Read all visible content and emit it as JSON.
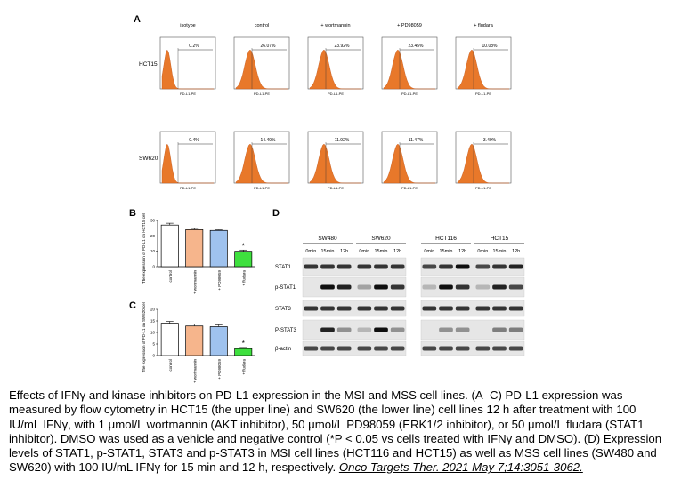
{
  "panels": {
    "a": "A",
    "b": "B",
    "c": "C",
    "d": "D"
  },
  "flow": {
    "columns": [
      "isotype",
      "control",
      "+ wortmannin",
      "+ PD98059",
      "+ fludara"
    ],
    "axis_label": "PD-L1-PE",
    "rows": [
      {
        "cell_line": "HCT15",
        "percents": [
          "0.2%",
          "26.07%",
          "23.92%",
          "23.45%",
          "10.08%"
        ]
      },
      {
        "cell_line": "SW620",
        "percents": [
          "0.4%",
          "14.49%",
          "11.92%",
          "11.47%",
          "3.40%"
        ]
      }
    ]
  },
  "chart_data": [
    {
      "type": "bar",
      "title": "B",
      "ylabel": "The expression of PD-L1 on HCT15 cells (%)",
      "categories": [
        "control",
        "+ wortmannin",
        "+ PD98059",
        "+ fludara"
      ],
      "values": [
        27,
        24,
        23.5,
        10
      ],
      "errors": [
        1.2,
        0.8,
        0.4,
        0.8
      ],
      "significance": [
        "",
        "",
        "",
        "*"
      ],
      "colors": [
        "#ffffff",
        "#f6b58c",
        "#9fc2ee",
        "#3ee03e"
      ],
      "ylim": [
        0,
        30
      ],
      "yticks": [
        0,
        10,
        20,
        30
      ]
    },
    {
      "type": "bar",
      "title": "C",
      "ylabel": "The expression of PD-L1 on SW620 cells (%)",
      "categories": [
        "control",
        "+ wortmannin",
        "+ PD98059",
        "+ fludara"
      ],
      "values": [
        14,
        12.8,
        12.5,
        3
      ],
      "errors": [
        0.8,
        0.8,
        0.8,
        0.5
      ],
      "significance": [
        "",
        "",
        "",
        "*"
      ],
      "colors": [
        "#ffffff",
        "#f6b58c",
        "#9fc2ee",
        "#3ee03e"
      ],
      "ylim": [
        0,
        20
      ],
      "yticks": [
        0,
        5,
        10,
        15,
        20
      ]
    }
  ],
  "western": {
    "groups": [
      "SW480",
      "SW620",
      "HCT116",
      "HCT15"
    ],
    "times": [
      "0min",
      "15min",
      "12h"
    ],
    "proteins": [
      "STAT1",
      "p-STAT1",
      "STAT3",
      "P-STAT3",
      "β-actin"
    ]
  },
  "caption": {
    "text": "Effects of IFNγ and kinase inhibitors on PD-L1 expression in the MSI and MSS cell lines. (A–C) PD-L1 expression was measured by flow cytometry in HCT15 (the upper line) and SW620 (the lower line) cell lines 12 h after treatment with 100 IU/mL IFNγ, with 1 μmol/L wortmannin (AKT inhibitor), 50 μmol/L PD98059 (ERK1/2 inhibitor), or 50 μmol/L fludara (STAT1 inhibitor). DMSO was used as a vehicle and negative control (*P < 0.05 vs cells treated with IFNγ and DMSO). (D) Expression levels of STAT1, p-STAT1, STAT3 and p-STAT3 in MSI cell lines (HCT116 and HCT15) as well as MSS cell lines (SW480 and SW620) with 100 IU/mL IFNγ for 15 min and 12 h, respectively. ",
    "citation": "Onco Targets Ther. 2021 May 7;14:3051-3062."
  }
}
